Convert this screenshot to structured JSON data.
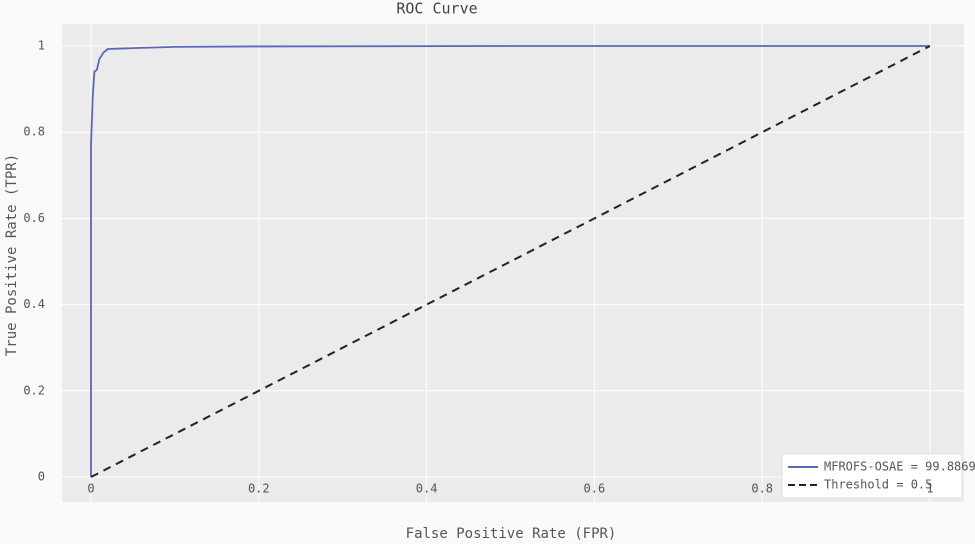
{
  "chart_data": {
    "type": "line",
    "title": "ROC Curve",
    "x_label": "False Positive Rate (FPR)",
    "y_label": "True Positive Rate (TPR)",
    "series": [
      {
        "name": "MFROFS-OSAE = 99.8869",
        "color": "#5c67b8",
        "dash": "solid",
        "x": [
          0,
          0,
          0.002,
          0.004,
          0.007,
          0.01,
          0.015,
          0.02,
          0.05,
          0.1,
          0.2,
          0.5,
          1
        ],
        "values": [
          0,
          0.77,
          0.88,
          0.94,
          0.945,
          0.97,
          0.985,
          0.993,
          0.995,
          0.998,
          0.999,
          1,
          1
        ]
      },
      {
        "name": "Threshold = 0.5",
        "color": "#222222",
        "dash": "dash",
        "x": [
          0,
          1
        ],
        "values": [
          0,
          1
        ]
      }
    ],
    "xlim": [
      0,
      1
    ],
    "ylim": [
      0,
      1
    ],
    "xticks": [
      0,
      0.2,
      0.4,
      0.6,
      0.8,
      1
    ],
    "yticks": [
      0,
      0.2,
      0.4,
      0.6,
      0.8,
      1
    ],
    "grid": true,
    "legend": "lower right"
  }
}
